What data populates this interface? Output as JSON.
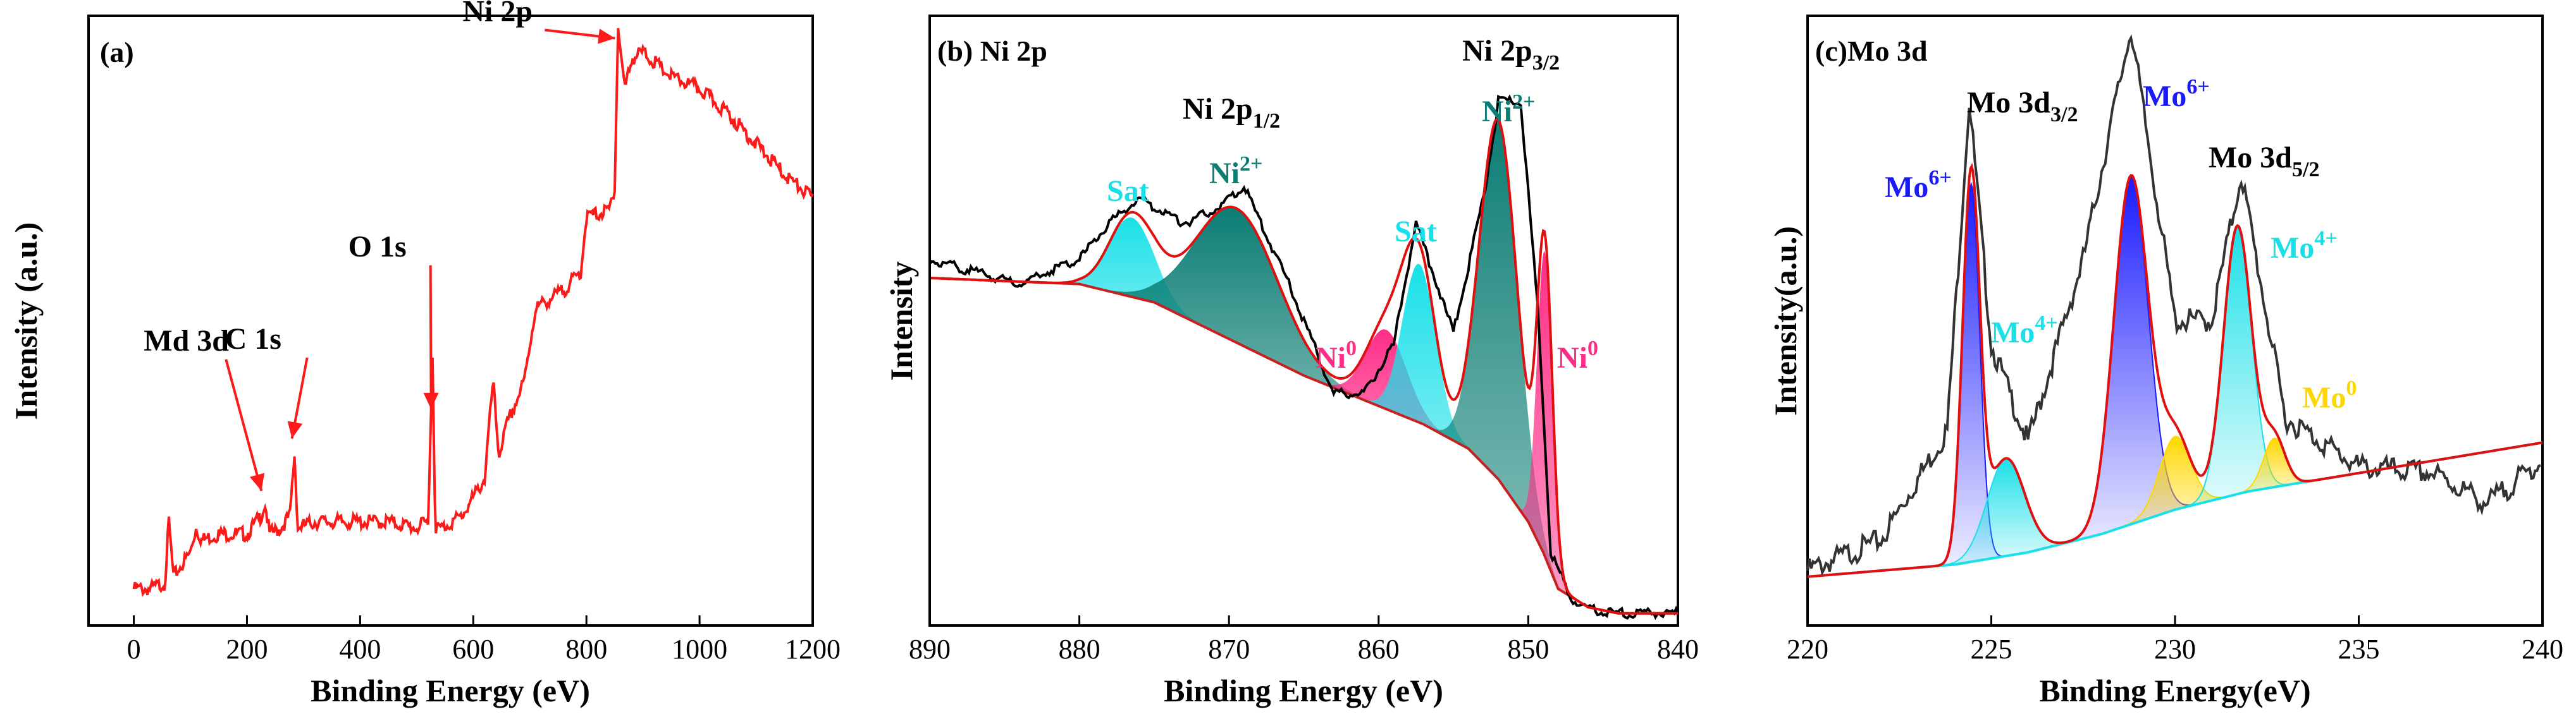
{
  "chart_data": [
    {
      "type": "line",
      "panel_label": "(a)",
      "title": "",
      "xlabel": "Binding Energy (eV)",
      "ylabel": "Intensity (a.u.)",
      "xlim": [
        -80,
        1200
      ],
      "ylim": [
        0,
        1
      ],
      "x_ticks": [
        "0",
        "200",
        "400",
        "600",
        "800",
        "1000",
        "1200"
      ],
      "annotations": [
        "Md 3d",
        "C 1s",
        "O 1s",
        "Ni 2p"
      ],
      "annotation_x": [
        230,
        284,
        530,
        855
      ],
      "series": [
        {
          "name": "Survey",
          "color": "#ff1a1a",
          "x": [
            0,
            30,
            55,
            62,
            70,
            100,
            110,
            120,
            150,
            200,
            225,
            232,
            240,
            260,
            276,
            284,
            290,
            320,
            400,
            450,
            500,
            520,
            528,
            533,
            545,
            580,
            620,
            635,
            645,
            660,
            690,
            710,
            760,
            790,
            800,
            840,
            850,
            856,
            868,
            880,
            900,
            950,
            1000,
            1050,
            1100,
            1150,
            1200
          ],
          "y": [
            0.06,
            0.06,
            0.07,
            0.17,
            0.08,
            0.12,
            0.16,
            0.14,
            0.15,
            0.15,
            0.18,
            0.2,
            0.15,
            0.16,
            0.18,
            0.28,
            0.16,
            0.17,
            0.17,
            0.17,
            0.16,
            0.17,
            0.44,
            0.16,
            0.16,
            0.18,
            0.24,
            0.4,
            0.28,
            0.33,
            0.4,
            0.52,
            0.55,
            0.58,
            0.67,
            0.68,
            0.72,
            0.98,
            0.88,
            0.93,
            0.94,
            0.9,
            0.88,
            0.84,
            0.79,
            0.74,
            0.7
          ]
        }
      ]
    },
    {
      "type": "area",
      "panel_label": "(b) Ni 2p",
      "title": "",
      "xlabel": "Binding Energy (eV)",
      "ylabel": "Intensity",
      "xlim": [
        890,
        840
      ],
      "ylim": [
        0,
        1
      ],
      "x_ticks": [
        "890",
        "880",
        "870",
        "860",
        "850",
        "840"
      ],
      "annotations": [
        "Ni 2p1/2",
        "Ni 2p3/2"
      ],
      "peak_labels": [
        {
          "text": "Sat",
          "sup": "",
          "x": 876.5,
          "color": "#19e0e8"
        },
        {
          "text": "Ni",
          "sup": "2+",
          "x": 869.5,
          "color": "#0b7d73"
        },
        {
          "text": "Ni",
          "sup": "0",
          "x": 861,
          "color": "#ff2d87"
        },
        {
          "text": "Sat",
          "sup": "",
          "x": 857.2,
          "color": "#19e0e8"
        },
        {
          "text": "Ni",
          "sup": "2+",
          "x": 852.2,
          "color": "#0b7d73"
        },
        {
          "text": "Ni",
          "sup": "0",
          "x": 848.8,
          "color": "#ff2d87"
        }
      ],
      "background": {
        "x": [
          890,
          880,
          875,
          870,
          865,
          860,
          857,
          854,
          852,
          850,
          849,
          848,
          846,
          844,
          841
        ],
        "y": [
          0.57,
          0.56,
          0.53,
          0.47,
          0.41,
          0.36,
          0.33,
          0.29,
          0.24,
          0.17,
          0.12,
          0.06,
          0.03,
          0.02,
          0.02
        ]
      },
      "peaks": [
        {
          "name": "Sat (2p1/2)",
          "center": 876.5,
          "fwhm": 3.5,
          "height": 0.13,
          "color": "#19e0e8"
        },
        {
          "name": "Ni2+ (2p1/2)",
          "center": 869.5,
          "fwhm": 6.5,
          "height": 0.22,
          "color": "#0b7d73"
        },
        {
          "name": "Ni0 (2p1/2)",
          "center": 859.5,
          "fwhm": 3.2,
          "height": 0.13,
          "color": "#ff2d87"
        },
        {
          "name": "Sat (2p3/2)",
          "center": 857.3,
          "fwhm": 2.6,
          "height": 0.26,
          "color": "#19e0e8"
        },
        {
          "name": "Ni2+ (2p3/2)",
          "center": 852.0,
          "fwhm": 3.0,
          "height": 0.59,
          "color": "#0b7d73"
        },
        {
          "name": "Ni0 (2p3/2)",
          "center": 848.9,
          "fwhm": 1.2,
          "height": 0.5,
          "color": "#ff2d87"
        }
      ],
      "series": [
        {
          "name": "Raw",
          "color": "#000000",
          "x": [
            890,
            884,
            880,
            878,
            876,
            873,
            871,
            869,
            866,
            863,
            861,
            859,
            857.5,
            855,
            853,
            852,
            850.5,
            849.3,
            848.5,
            847,
            845,
            842,
            840
          ],
          "y": [
            0.6,
            0.56,
            0.6,
            0.66,
            0.7,
            0.66,
            0.68,
            0.72,
            0.56,
            0.38,
            0.38,
            0.46,
            0.66,
            0.48,
            0.7,
            0.86,
            0.86,
            0.5,
            0.12,
            0.04,
            0.02,
            0.02,
            0.02
          ]
        },
        {
          "name": "Fit",
          "color": "#e01010"
        }
      ]
    },
    {
      "type": "area",
      "panel_label": "(c)Mo 3d",
      "title": "",
      "xlabel": "Binding Energy(eV)",
      "ylabel": "Intensity(a.u.)",
      "xlim": [
        220,
        240
      ],
      "ylim": [
        0,
        1
      ],
      "x_ticks": [
        "220",
        "225",
        "230",
        "235",
        "240"
      ],
      "annotations": [
        "Mo 3d3/2",
        "Mo 3d5/2"
      ],
      "peak_labels": [
        {
          "text": "Mo",
          "sup": "6+",
          "x": 224.4,
          "color": "#1a1aff"
        },
        {
          "text": "Mo",
          "sup": "4+",
          "x": 225.4,
          "color": "#19e0e8"
        },
        {
          "text": "Mo",
          "sup": "6+",
          "x": 228.8,
          "color": "#1a1aff"
        },
        {
          "text": "Mo",
          "sup": "4+",
          "x": 231.8,
          "color": "#19e0e8"
        },
        {
          "text": "Mo",
          "sup": "0",
          "x": 232.6,
          "color": "#ffd700"
        }
      ],
      "background": {
        "x": [
          220,
          224,
          226,
          228,
          230,
          232,
          234,
          236,
          238,
          240
        ],
        "y": [
          0.08,
          0.1,
          0.12,
          0.15,
          0.19,
          0.22,
          0.24,
          0.26,
          0.28,
          0.3
        ]
      },
      "peaks": [
        {
          "name": "Mo6+ (3d5/2)",
          "center": 224.45,
          "fwhm": 0.55,
          "height": 0.62,
          "color": "#1a1aff"
        },
        {
          "name": "Mo4+ (3d5/2)",
          "center": 225.4,
          "fwhm": 1.2,
          "height": 0.16,
          "color": "#19e0e8"
        },
        {
          "name": "Mo6+ (3d3/2)",
          "center": 228.8,
          "fwhm": 1.1,
          "height": 0.57,
          "color": "#1a1aff"
        },
        {
          "name": "Mo0",
          "center": 230.0,
          "fwhm": 1.0,
          "height": 0.12,
          "color": "#ffd700"
        },
        {
          "name": "Mo4+ (3d3/2)",
          "center": 231.7,
          "fwhm": 0.9,
          "height": 0.44,
          "color": "#19e0e8"
        },
        {
          "name": "Mo0",
          "center": 232.7,
          "fwhm": 0.7,
          "height": 0.08,
          "color": "#ffd700"
        }
      ],
      "series": [
        {
          "name": "Raw",
          "color": "#333333",
          "x": [
            220,
            222,
            223.8,
            224.4,
            225,
            226,
            227.5,
            228.8,
            230,
            231,
            231.8,
            233,
            235,
            237,
            238.5,
            240
          ],
          "y": [
            0.09,
            0.14,
            0.32,
            0.86,
            0.46,
            0.3,
            0.6,
            0.98,
            0.5,
            0.5,
            0.74,
            0.34,
            0.26,
            0.25,
            0.2,
            0.27
          ]
        },
        {
          "name": "Fit",
          "color": "#e01010"
        }
      ]
    }
  ]
}
